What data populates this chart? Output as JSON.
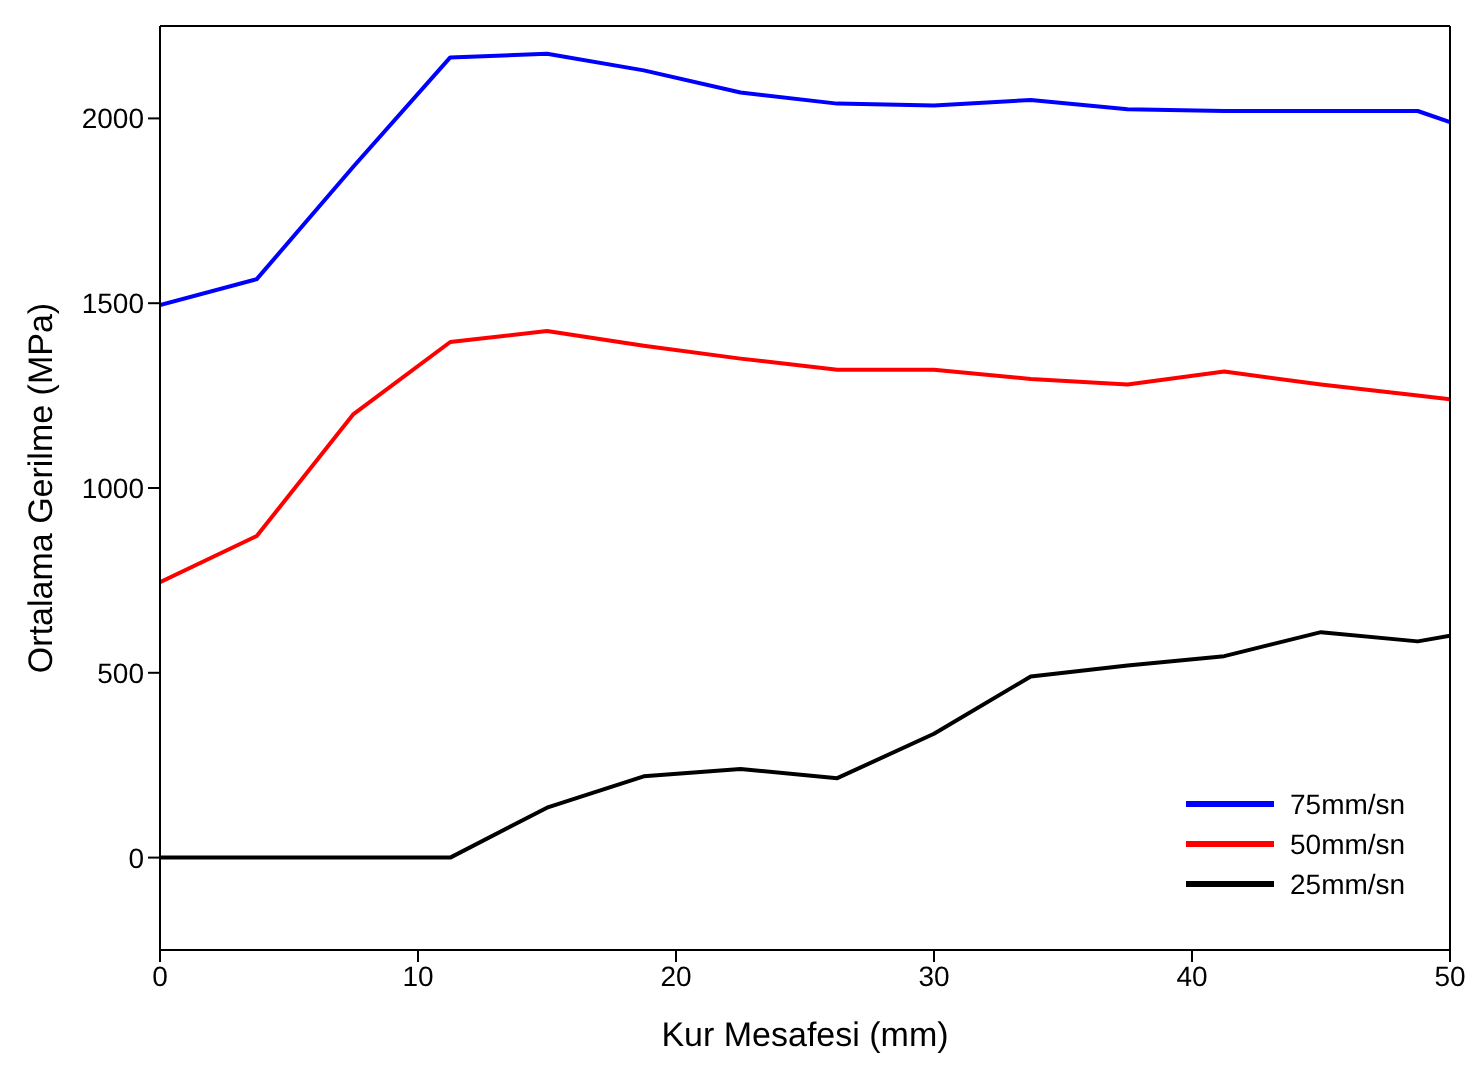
{
  "chart_data": {
    "type": "line",
    "xlabel": "Kur Mesafesi (mm)",
    "ylabel": "Ortalama Gerilme (MPa)",
    "x": [
      0,
      3.75,
      7.5,
      11.25,
      15,
      18.75,
      22.5,
      26.25,
      30,
      33.75,
      37.5,
      41.25,
      45,
      48.75,
      50
    ],
    "xlim": [
      0,
      50
    ],
    "xticks": [
      0,
      10,
      20,
      30,
      40,
      50
    ],
    "ylim": [
      -250,
      2250
    ],
    "yticks": [
      0,
      500,
      1000,
      1500,
      2000
    ],
    "legend": "bottom right",
    "marker": "none",
    "line_style": "solid",
    "series": [
      {
        "name": "75mm/sn",
        "color": "#0000ff",
        "values": [
          1495,
          1565,
          1870,
          2165,
          2175,
          2130,
          2070,
          2040,
          2035,
          2050,
          2025,
          2020,
          2020,
          2020,
          1990
        ]
      },
      {
        "name": "50mm/sn",
        "color": "#ff0000",
        "values": [
          745,
          870,
          1200,
          1395,
          1425,
          1385,
          1350,
          1320,
          1320,
          1295,
          1280,
          1315,
          1280,
          1250,
          1240
        ]
      },
      {
        "name": "25mm/sn",
        "color": "#000000",
        "values": [
          0,
          0,
          0,
          0,
          135,
          220,
          240,
          215,
          335,
          490,
          520,
          545,
          610,
          585,
          600
        ]
      }
    ]
  }
}
